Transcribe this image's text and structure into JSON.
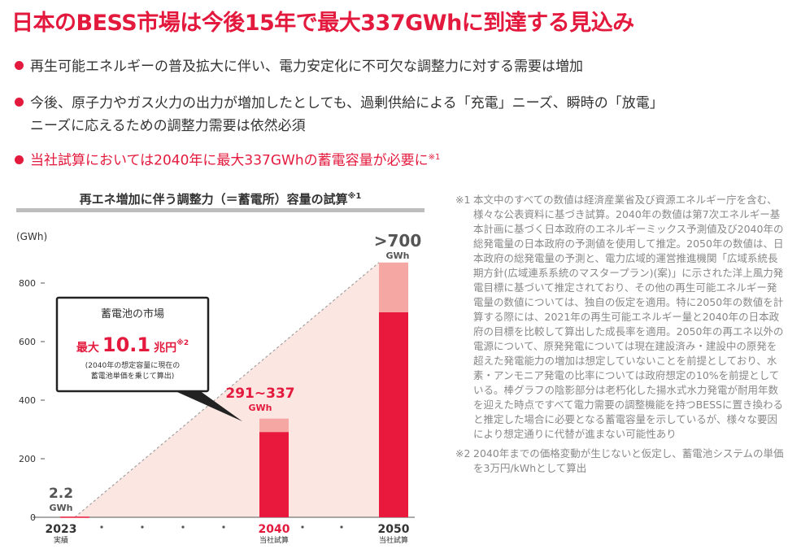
{
  "title": "日本のBESS市場は今後15年で最大337GWhに到達する見込み",
  "bullets": [
    {
      "text": "再生可能エネルギーの普及拡大に伴い、電力安定化に不可欠な調整力に対する需要は増加"
    },
    {
      "line1": "今後、原子力やガス火力の出力が増加したとしても、過剰供給による「充電」ニーズ、瞬時の「放電」",
      "line2": "ニーズに応えるための調整力需要は依然必須"
    },
    {
      "text": "当社試算においては2040年に最大337GWhの蓄電容量が必要に",
      "sup": "※1"
    }
  ],
  "chart_title": {
    "text": "再エネ増加に伴う調整力（＝蓄電所）容量の試算",
    "sup": "※1"
  },
  "callout": {
    "title": "蓄電池の市場",
    "prefix": "最大",
    "value": "10.1",
    "unit": "兆円",
    "sup": "※2",
    "note_line1": "(2040年の想定容量に現在の",
    "note_line2": "蓄電池単価を乗じて算出)"
  },
  "chart_data": {
    "type": "bar",
    "ylabel": "(GWh)",
    "ylim": [
      0,
      800
    ],
    "yticks": [
      0,
      200,
      400,
      600,
      800
    ],
    "categories": [
      "2023",
      "2040",
      "2050"
    ],
    "sublabels": [
      "実績",
      "当社試算",
      "当社試算"
    ],
    "values": [
      2.2,
      291,
      700
    ],
    "upper_values": [
      2.2,
      337,
      870
    ],
    "value_labels": [
      {
        "main": "2.2",
        "unit": "GWh"
      },
      {
        "main": "291~337",
        "unit": "GWh"
      },
      {
        "main": ">700",
        "unit": "GWh"
      }
    ],
    "colors": {
      "bar": "#e8193c",
      "bar_light": "#f4a7a3",
      "area": "#fbe6e2",
      "text_red": "#e31a3d"
    }
  },
  "notes": [
    {
      "mark": "※1",
      "text": "本文中のすべての数値は経済産業省及び資源エネルギー庁を含む、様々な公表資料に基づき試算。2040年の数値は第7次エネルギー基本計画に基づく日本政府のエネルギーミックス予測値及び2040年の総発電量の日本政府の予測値を使用して推定。2050年の数値は、日本政府の総発電量の予測と、電力広域的運営推進機関「広域系統長期方針(広域連系系統のマスタープラン)(案)」に示された洋上風力発電目標に基づいて推定されており、その他の再生可能エネルギー発電量の数値については、独自の仮定を適用。特に2050年の数値を計算する際には、2021年の再生可能エネルギー量と2040年の日本政府の目標を比較して算出した成長率を適用。2050年の再エネ以外の電源について、原発発電については現在建設済み・建設中の原発を超えた発電能力の増加は想定していないことを前提としており、水素・アンモニア発電の比率については政府想定の10%を前提としている。棒グラフの陰影部分は老朽化した揚水式水力発電が耐用年数を迎えた時点ですべて電力需要の調整機能を持つBESSに置き換わると推定した場合に必要となる蓄電容量を示しているが、様々な要因により想定通りに代替が進まない可能性あり"
    },
    {
      "mark": "※2",
      "text": "2040年までの価格変動が生じないと仮定し、蓄電池システムの単価を3万円/kWhとして算出"
    }
  ]
}
